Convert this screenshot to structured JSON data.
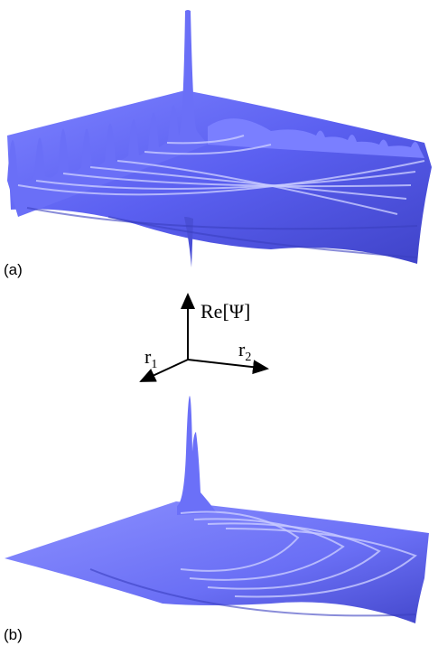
{
  "panels": [
    {
      "label": "(a)"
    },
    {
      "label": "(b)"
    }
  ],
  "axes": {
    "z": "Re[Ψ]",
    "x": {
      "base": "r",
      "sub": "1"
    },
    "y": {
      "base": "r",
      "sub": "2"
    }
  }
}
